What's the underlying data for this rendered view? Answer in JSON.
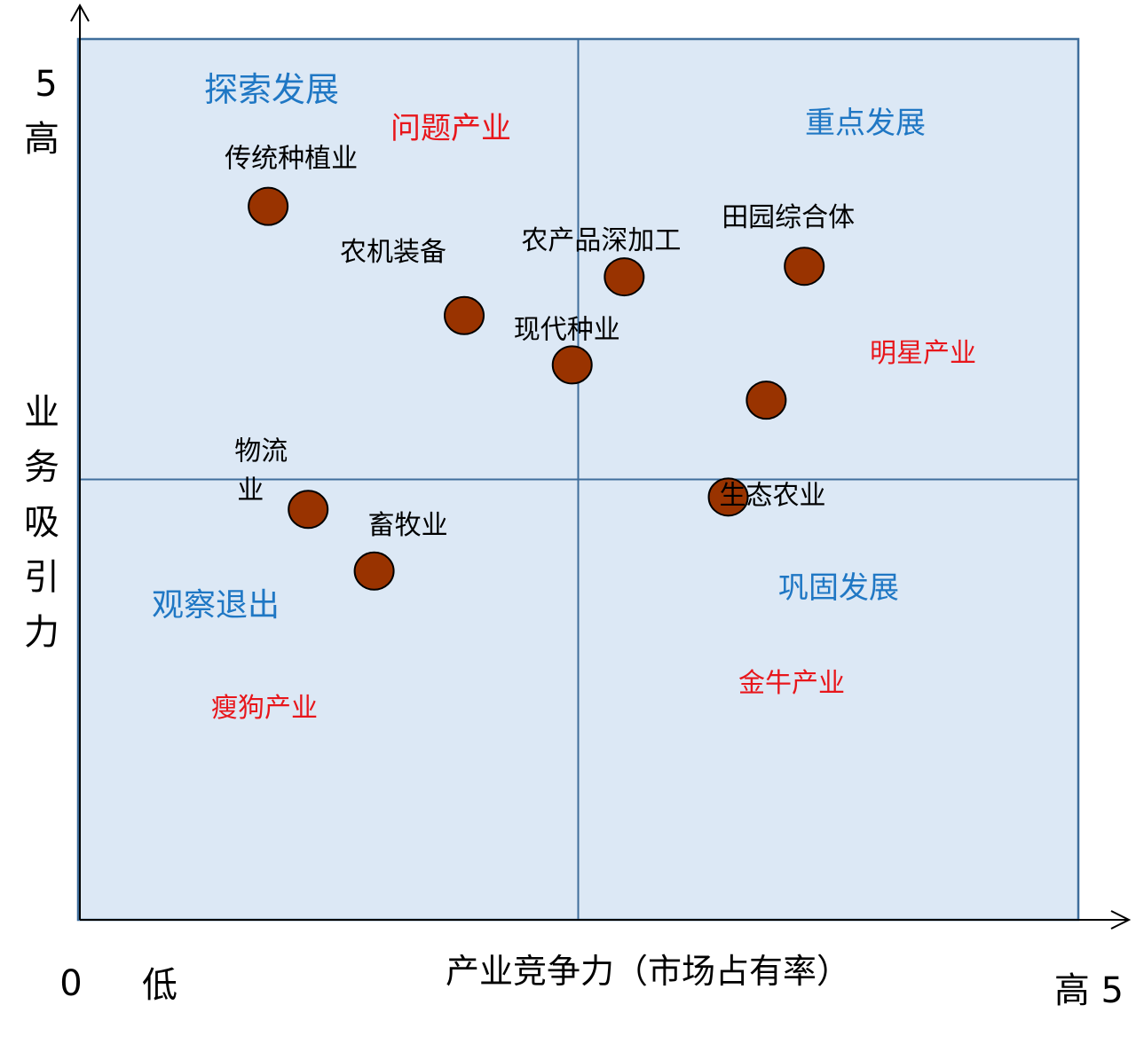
{
  "chart_data": {
    "type": "scatter",
    "xlim": [
      0,
      5
    ],
    "ylim": [
      0,
      5
    ],
    "axes": {
      "y_top_value": "5",
      "y_top_label": "高",
      "y_title": "业务吸引力",
      "x_origin": "0",
      "x_low_label": "低",
      "x_title": "产业竞争力（市场占有率）",
      "x_high_label": "高 5"
    },
    "quadrants": {
      "top_left": {
        "strategy": "探索发展",
        "type": "问题产业"
      },
      "top_right": {
        "strategy": "重点发展",
        "type": "明星产业"
      },
      "bottom_left": {
        "strategy": "观察退出",
        "type": "瘦狗产业"
      },
      "bottom_right": {
        "strategy": "巩固发展",
        "type": "金牛产业"
      }
    },
    "points": [
      {
        "label": "传统种植业",
        "x": 0.95,
        "y": 4.05
      },
      {
        "label": "农机装备",
        "x": 1.93,
        "y": 3.43
      },
      {
        "label": "农产品深加工",
        "x": 2.73,
        "y": 3.65
      },
      {
        "label": "田园综合体",
        "x": 3.63,
        "y": 3.71
      },
      {
        "label": "现代种业",
        "x": 2.47,
        "y": 3.15
      },
      {
        "label": "",
        "x": 3.44,
        "y": 2.95
      },
      {
        "label": "物流业",
        "x": 1.15,
        "y": 2.33
      },
      {
        "label": "生态农业",
        "x": 3.25,
        "y": 2.4
      },
      {
        "label": "畜牧业",
        "x": 1.48,
        "y": 1.98
      }
    ],
    "colors": {
      "plot_fill": "#dce8f5",
      "frame": "#3f6e9c",
      "point": "#993300",
      "strategy_text": "#1f77c4",
      "type_text": "#e8161b"
    }
  }
}
